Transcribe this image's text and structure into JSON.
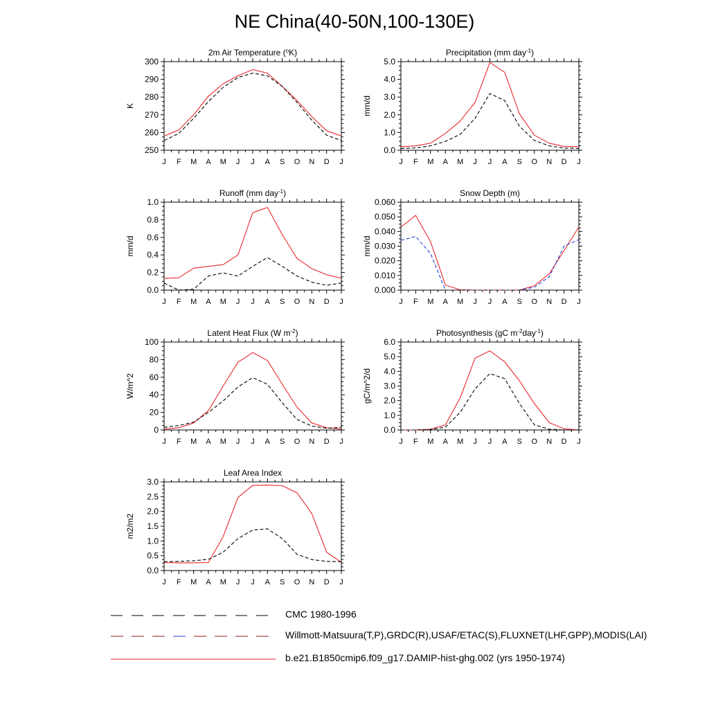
{
  "figure": {
    "title": "NE China(40-50N,100-130E)"
  },
  "colors": {
    "model": "#e8262c",
    "obs": "#000000",
    "snow_obs": "#1f3fd6"
  },
  "legend": [
    {
      "label": "CMC 1980-1996",
      "style": "dash-black"
    },
    {
      "label": "Willmott-Matsuura(T,P),GRDC(R),USAF/ETAC(S),FLUXNET(LHF,GPP),MODIS(LAI)",
      "style": "dash-mixed"
    },
    {
      "label": "b.e21.B1850cmip6.f09_g17.DAMIP-hist-ghg.002 (yrs 1950-1974)",
      "style": "solid-red"
    }
  ],
  "chart_data": [
    {
      "type": "line",
      "title": "2m Air Temperature (°K)",
      "ylabel": "K",
      "x": [
        "J",
        "F",
        "M",
        "A",
        "M",
        "J",
        "J",
        "A",
        "S",
        "O",
        "N",
        "D",
        "J"
      ],
      "ylim": [
        250,
        300
      ],
      "yticks": [
        "250",
        "260",
        "270",
        "280",
        "290",
        "300"
      ],
      "series": [
        {
          "values": [
            258,
            261.5,
            270,
            280.5,
            287.5,
            292,
            295.5,
            293.5,
            286,
            278,
            269,
            261,
            258
          ],
          "color": "#e8262c",
          "dash": false
        },
        {
          "values": [
            255.5,
            259.5,
            268,
            277.5,
            285.5,
            291,
            293.5,
            292,
            286,
            277,
            267,
            258.5,
            255.5
          ],
          "color": "#000000",
          "dash": true
        }
      ]
    },
    {
      "type": "line",
      "title": "Precipitation (mm day-1)",
      "ylabel": "mm/d",
      "x": [
        "J",
        "F",
        "M",
        "A",
        "M",
        "J",
        "J",
        "A",
        "S",
        "O",
        "N",
        "D",
        "J"
      ],
      "ylim": [
        0,
        5
      ],
      "yticks": [
        "0.0",
        "1.0",
        "2.0",
        "3.0",
        "4.0",
        "5.0"
      ],
      "series": [
        {
          "values": [
            0.2,
            0.25,
            0.4,
            0.95,
            1.65,
            2.7,
            4.95,
            4.4,
            2.05,
            0.85,
            0.4,
            0.22,
            0.2
          ],
          "color": "#e8262c",
          "dash": false
        },
        {
          "values": [
            0.1,
            0.13,
            0.25,
            0.5,
            0.9,
            1.8,
            3.2,
            2.8,
            1.35,
            0.55,
            0.25,
            0.12,
            0.1
          ],
          "color": "#000000",
          "dash": true
        }
      ]
    },
    {
      "type": "line",
      "title": "Runoff (mm day-1)",
      "ylabel": "mm/d",
      "x": [
        "J",
        "F",
        "M",
        "A",
        "M",
        "J",
        "J",
        "A",
        "S",
        "O",
        "N",
        "D",
        "J"
      ],
      "ylim": [
        0,
        1
      ],
      "yticks": [
        "0.0",
        "0.2",
        "0.4",
        "0.6",
        "0.8",
        "1.0"
      ],
      "series": [
        {
          "values": [
            0.135,
            0.14,
            0.25,
            0.27,
            0.29,
            0.4,
            0.88,
            0.94,
            0.63,
            0.36,
            0.245,
            0.175,
            0.135
          ],
          "color": "#e8262c",
          "dash": false
        },
        {
          "values": [
            0.08,
            0.0,
            0.01,
            0.16,
            0.195,
            0.16,
            0.27,
            0.37,
            0.27,
            0.16,
            0.09,
            0.055,
            0.08
          ],
          "color": "#000000",
          "dash": true
        }
      ]
    },
    {
      "type": "line",
      "title": "Snow Depth (m)",
      "ylabel": "mm/d",
      "x": [
        "J",
        "F",
        "M",
        "A",
        "M",
        "J",
        "J",
        "A",
        "S",
        "O",
        "N",
        "D",
        "J"
      ],
      "ylim": [
        0,
        0.06
      ],
      "yticks": [
        "0.000",
        "0.010",
        "0.020",
        "0.030",
        "0.040",
        "0.050",
        "0.060"
      ],
      "series": [
        {
          "values": [
            0.043,
            0.051,
            0.033,
            0.0035,
            0.0002,
            0.0,
            0.0,
            0.0,
            0.0,
            0.003,
            0.011,
            0.027,
            0.043
          ],
          "color": "#e8262c",
          "dash": false
        },
        {
          "values": [
            0.034,
            0.0365,
            0.025,
            0.0,
            0.0,
            0.0,
            0.0,
            0.0,
            0.0,
            0.002,
            0.009,
            0.03,
            0.0345
          ],
          "color": "#1f3fd6",
          "dash": true
        },
        {
          "values": [
            0.0,
            0.0,
            0.0,
            0.0,
            0.0,
            0.0,
            0.0,
            0.0,
            0.0,
            0.0,
            0.0,
            0.0,
            0.0
          ],
          "color": "#000000",
          "dash": true
        }
      ]
    },
    {
      "type": "line",
      "title": "Latent Heat Flux (W m-2)",
      "ylabel": "W/m^2",
      "x": [
        "J",
        "F",
        "M",
        "A",
        "M",
        "J",
        "J",
        "A",
        "S",
        "O",
        "N",
        "D",
        "J"
      ],
      "ylim": [
        0,
        100
      ],
      "yticks": [
        "0",
        "20",
        "40",
        "60",
        "80",
        "100"
      ],
      "series": [
        {
          "values": [
            1,
            2.5,
            8,
            22,
            50,
            77,
            88,
            79,
            52,
            26,
            8,
            2.5,
            1
          ],
          "color": "#e8262c",
          "dash": false
        },
        {
          "values": [
            3,
            5,
            9,
            20,
            33,
            49,
            59.5,
            52,
            31,
            12,
            4.5,
            2,
            3
          ],
          "color": "#000000",
          "dash": true
        }
      ]
    },
    {
      "type": "line",
      "title": "Photosynthesis (gC m-2day-1)",
      "ylabel": "gC/m^2/d",
      "x": [
        "J",
        "F",
        "M",
        "A",
        "M",
        "J",
        "J",
        "A",
        "S",
        "O",
        "N",
        "D",
        "J"
      ],
      "ylim": [
        0,
        6
      ],
      "yticks": [
        "0.0",
        "1.0",
        "2.0",
        "3.0",
        "4.0",
        "5.0",
        "6.0"
      ],
      "series": [
        {
          "values": [
            0.0,
            0.0,
            0.05,
            0.35,
            2.2,
            4.9,
            5.4,
            4.65,
            3.35,
            1.8,
            0.5,
            0.08,
            0.0
          ],
          "color": "#e8262c",
          "dash": false
        },
        {
          "values": [
            0.0,
            0.0,
            0.03,
            0.2,
            1.2,
            2.8,
            3.85,
            3.5,
            1.8,
            0.35,
            0.05,
            0.0,
            0.0
          ],
          "color": "#000000",
          "dash": true
        }
      ]
    },
    {
      "type": "line",
      "title": "Leaf Area Index",
      "ylabel": "m2/m2",
      "x": [
        "J",
        "F",
        "M",
        "A",
        "M",
        "J",
        "J",
        "A",
        "S",
        "O",
        "N",
        "D",
        "J"
      ],
      "ylim": [
        0,
        3
      ],
      "yticks": [
        "0.0",
        "0.5",
        "1.0",
        "1.5",
        "2.0",
        "2.5",
        "3.0"
      ],
      "series": [
        {
          "values": [
            0.27,
            0.26,
            0.26,
            0.27,
            1.15,
            2.47,
            2.88,
            2.89,
            2.87,
            2.63,
            1.93,
            0.62,
            0.28
          ],
          "color": "#e8262c",
          "dash": false
        },
        {
          "values": [
            0.3,
            0.31,
            0.33,
            0.38,
            0.62,
            1.08,
            1.37,
            1.41,
            1.08,
            0.55,
            0.37,
            0.31,
            0.3
          ],
          "color": "#000000",
          "dash": true
        }
      ]
    }
  ]
}
